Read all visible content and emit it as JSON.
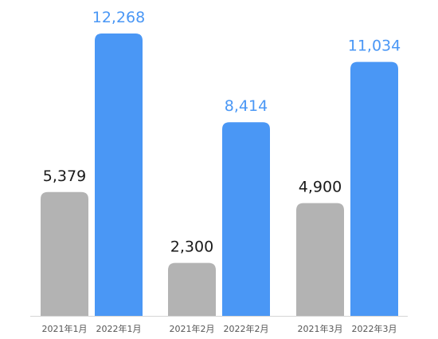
{
  "chart_data": {
    "type": "bar",
    "title": "",
    "xlabel": "",
    "ylabel": "",
    "ylim": [
      0,
      13600
    ],
    "grid": false,
    "legend": "none",
    "colors": {
      "bar_2021": "#b3b3b3",
      "bar_2022": "#4a97f5",
      "label_2021": "#1a1a1a",
      "label_2022": "#4a97f5",
      "baseline": "#d6d6d6"
    },
    "categories": [
      "2021年1月",
      "2022年1月",
      "2021年2月",
      "2022年2月",
      "2021年3月",
      "2022年3月"
    ],
    "values": [
      5379,
      12268,
      2300,
      8414,
      4900,
      11034
    ],
    "value_labels": [
      "5,379",
      "12,268",
      "2,300",
      "8,414",
      "4,900",
      "11,034"
    ],
    "series_of_bar": [
      "2021",
      "2022",
      "2021",
      "2022",
      "2021",
      "2022"
    ]
  }
}
